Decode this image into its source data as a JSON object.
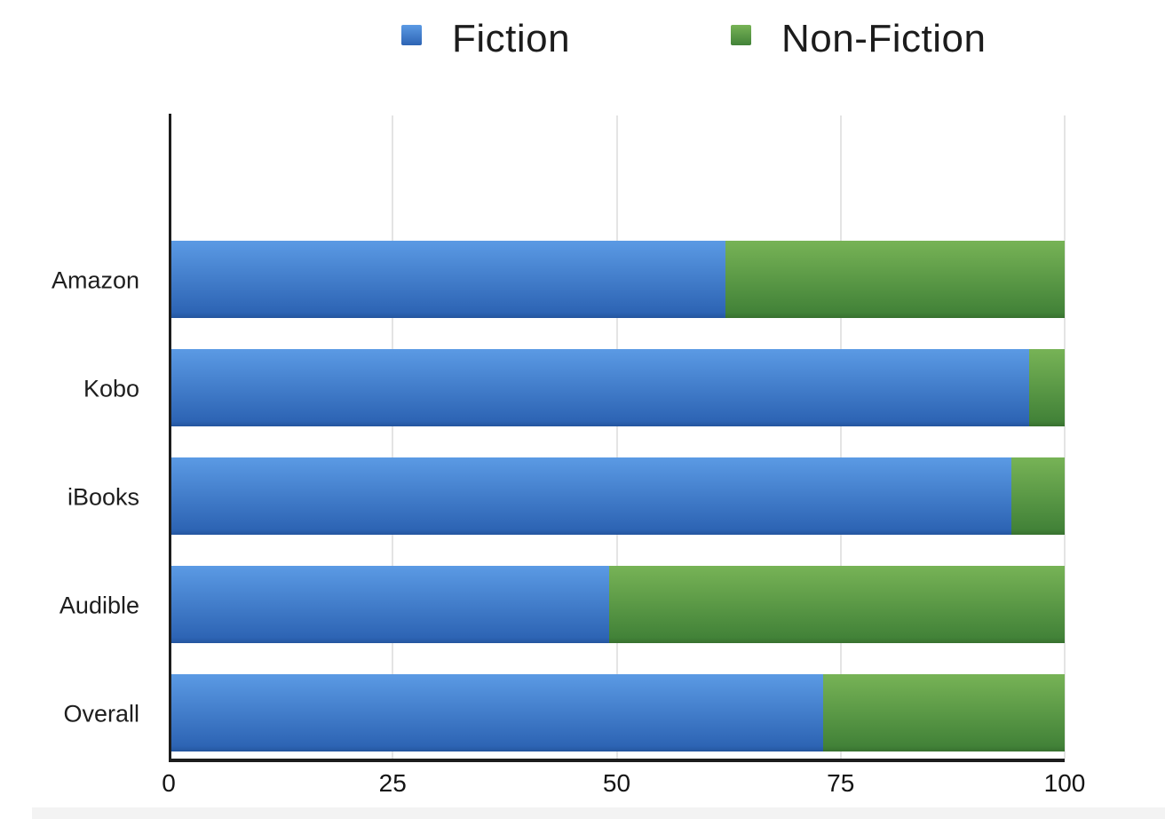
{
  "chart_data": {
    "type": "bar",
    "orientation": "horizontal",
    "stacked": true,
    "title": "",
    "xlabel": "",
    "ylabel": "",
    "categories": [
      "Amazon",
      "Kobo",
      "iBooks",
      "Audible",
      "Overall"
    ],
    "series": [
      {
        "name": "Fiction",
        "values": [
          62,
          96,
          94,
          49,
          73
        ],
        "color_top": "#5b9ae4",
        "color_bottom": "#2d64b4",
        "color_edge": "#24559e"
      },
      {
        "name": "Non-Fiction",
        "values": [
          38,
          4,
          6,
          51,
          27
        ],
        "color_top": "#77b356",
        "color_bottom": "#428238",
        "color_edge": "#38702f"
      }
    ],
    "xlim": [
      0,
      100
    ],
    "x_ticks": [
      0,
      25,
      50,
      75,
      100
    ],
    "grid": true,
    "legend_position": "top"
  },
  "style": {
    "axis_color": "#1d1d1d",
    "gridline_color": "#e4e4e4",
    "text_color": "#1e1e1e",
    "background": "#ffffff"
  }
}
